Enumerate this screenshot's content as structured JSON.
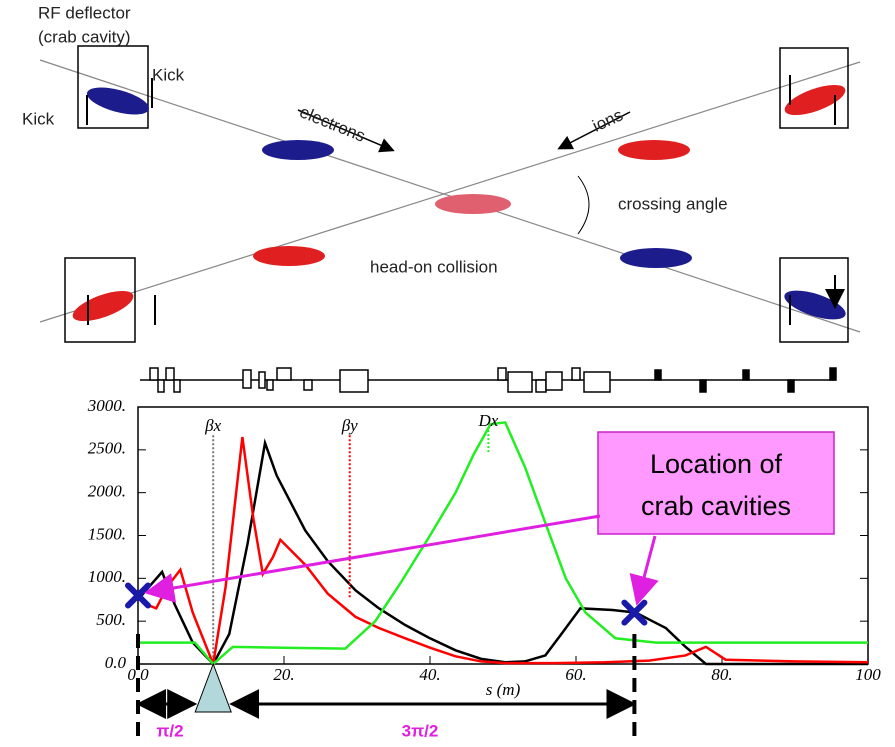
{
  "diagram": {
    "title_lines": [
      "RF deflector",
      "(crab cavity)"
    ],
    "kick_labels": [
      "Kick",
      "Kick"
    ],
    "electrons": "electrons",
    "ions": "ions",
    "crossing_angle": "crossing angle",
    "head_on": "head-on collision"
  },
  "chart_data": {
    "type": "line",
    "x_label": "s (m)",
    "xlim": [
      0,
      100
    ],
    "ylim": [
      0,
      3000
    ],
    "xticks": [
      {
        "value": 0,
        "label": "0.0"
      },
      {
        "value": 20,
        "label": "20."
      },
      {
        "value": 40,
        "label": "40."
      },
      {
        "value": 60,
        "label": "60."
      },
      {
        "value": 80,
        "label": "80."
      },
      100
    ],
    "yticks": [
      {
        "value": 0,
        "label": "0.0"
      },
      {
        "value": 500,
        "label": "500."
      },
      {
        "value": 1000,
        "label": "1000."
      },
      {
        "value": 1500,
        "label": "1500."
      },
      {
        "value": 2000,
        "label": "2000."
      },
      {
        "value": 2500,
        "label": "2500."
      },
      {
        "value": 3000,
        "label": "3000."
      }
    ],
    "series": [
      {
        "name": "βx",
        "color": "#000000",
        "x": [
          0,
          1.5,
          3.3,
          5,
          7.5,
          10.3,
          12.5,
          15,
          17.4,
          19,
          22.9,
          26,
          29.8,
          33,
          36.6,
          40,
          43.5,
          47,
          50.3,
          53,
          55.8,
          58,
          60.6,
          65,
          68.2,
          70,
          72.3,
          75,
          77.8,
          85,
          100
        ],
        "values": [
          750,
          900,
          1075,
          700,
          250,
          0,
          350,
          1400,
          2580,
          2200,
          1560,
          1200,
          860,
          650,
          455,
          300,
          160,
          60,
          20,
          30,
          100,
          350,
          650,
          630,
          600,
          520,
          420,
          200,
          0,
          0,
          0
        ]
      },
      {
        "name": "βy",
        "color": "#ff0000",
        "x": [
          0,
          1,
          2.5,
          4,
          5.8,
          7.5,
          10.3,
          12,
          14.3,
          15.8,
          17.1,
          18.5,
          19.5,
          23,
          26,
          29.8,
          33,
          36.6,
          40,
          43.5,
          47,
          50.3,
          57,
          64,
          70,
          75,
          77.8,
          80.5,
          90,
          100
        ],
        "values": [
          800,
          700,
          650,
          900,
          1100,
          600,
          0,
          900,
          2650,
          1700,
          1050,
          1250,
          1450,
          1150,
          820,
          550,
          420,
          300,
          190,
          90,
          30,
          10,
          10,
          20,
          40,
          100,
          200,
          50,
          30,
          20
        ]
      },
      {
        "name": "Dx",
        "color": "#22ee22",
        "x": [
          0,
          7.8,
          10.3,
          13,
          20,
          28.4,
          32.5,
          36,
          40,
          43.5,
          46,
          48.3,
          50.3,
          53,
          56,
          58.6,
          61.3,
          65.4,
          71,
          100
        ],
        "values": [
          250,
          250,
          0,
          200,
          190,
          180,
          500,
          950,
          1500,
          2000,
          2450,
          2800,
          2820,
          2300,
          1600,
          1000,
          600,
          300,
          250,
          250
        ]
      }
    ],
    "markers": {
      "x": [
        0,
        68
      ],
      "values": [
        800,
        600
      ],
      "color": "#1a1aaa"
    },
    "callout_lines": [
      "Location of",
      "crab cavities"
    ],
    "phase_labels": [
      "π/2",
      "3π/2"
    ]
  }
}
